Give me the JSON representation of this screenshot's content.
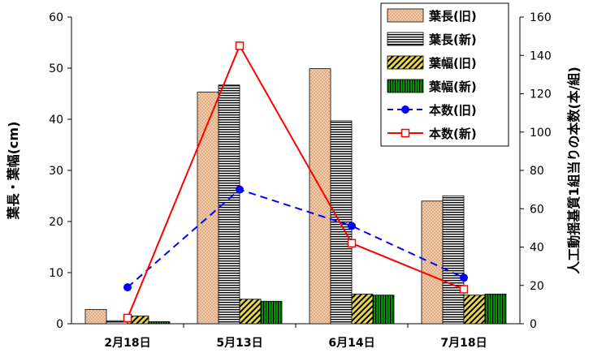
{
  "chart_data": {
    "type": "bar",
    "categories": [
      "2月18日",
      "5月13日",
      "6月14日",
      "7月18日"
    ],
    "series": [
      {
        "name": "葉長(旧)",
        "kind": "bar",
        "axis": "left",
        "values": [
          2.8,
          45.3,
          49.9,
          24.0
        ],
        "color": "#f6c9a5"
      },
      {
        "name": "葉長(新)",
        "kind": "bar",
        "axis": "left",
        "values": [
          0.6,
          46.7,
          39.7,
          25.0
        ],
        "color": "#000000"
      },
      {
        "name": "葉幅(旧)",
        "kind": "bar",
        "axis": "left",
        "values": [
          1.5,
          4.8,
          5.8,
          5.6
        ],
        "color": "#e8d84a"
      },
      {
        "name": "葉幅(新)",
        "kind": "bar",
        "axis": "left",
        "values": [
          0.4,
          4.4,
          5.6,
          5.8
        ],
        "color": "#00a000"
      },
      {
        "name": "本数(旧)",
        "kind": "line",
        "axis": "right",
        "values": [
          19,
          70,
          51,
          24
        ],
        "color": "#0000ff"
      },
      {
        "name": "本数(新)",
        "kind": "line",
        "axis": "right",
        "values": [
          3,
          145,
          42,
          18
        ],
        "color": "#ff0000"
      }
    ],
    "ylabel": "葉長・葉幅(cm)",
    "y2label": "人工動揺基質1組当りの本数(本/組)",
    "ylim": [
      0,
      60
    ],
    "y2lim": [
      0,
      160
    ],
    "yticks": [
      "0",
      "10",
      "20",
      "30",
      "40",
      "50",
      "60"
    ],
    "y2ticks": [
      "0",
      "20",
      "40",
      "60",
      "80",
      "100",
      "120",
      "140",
      "160"
    ],
    "legend_position": "top-right",
    "grid": false
  }
}
